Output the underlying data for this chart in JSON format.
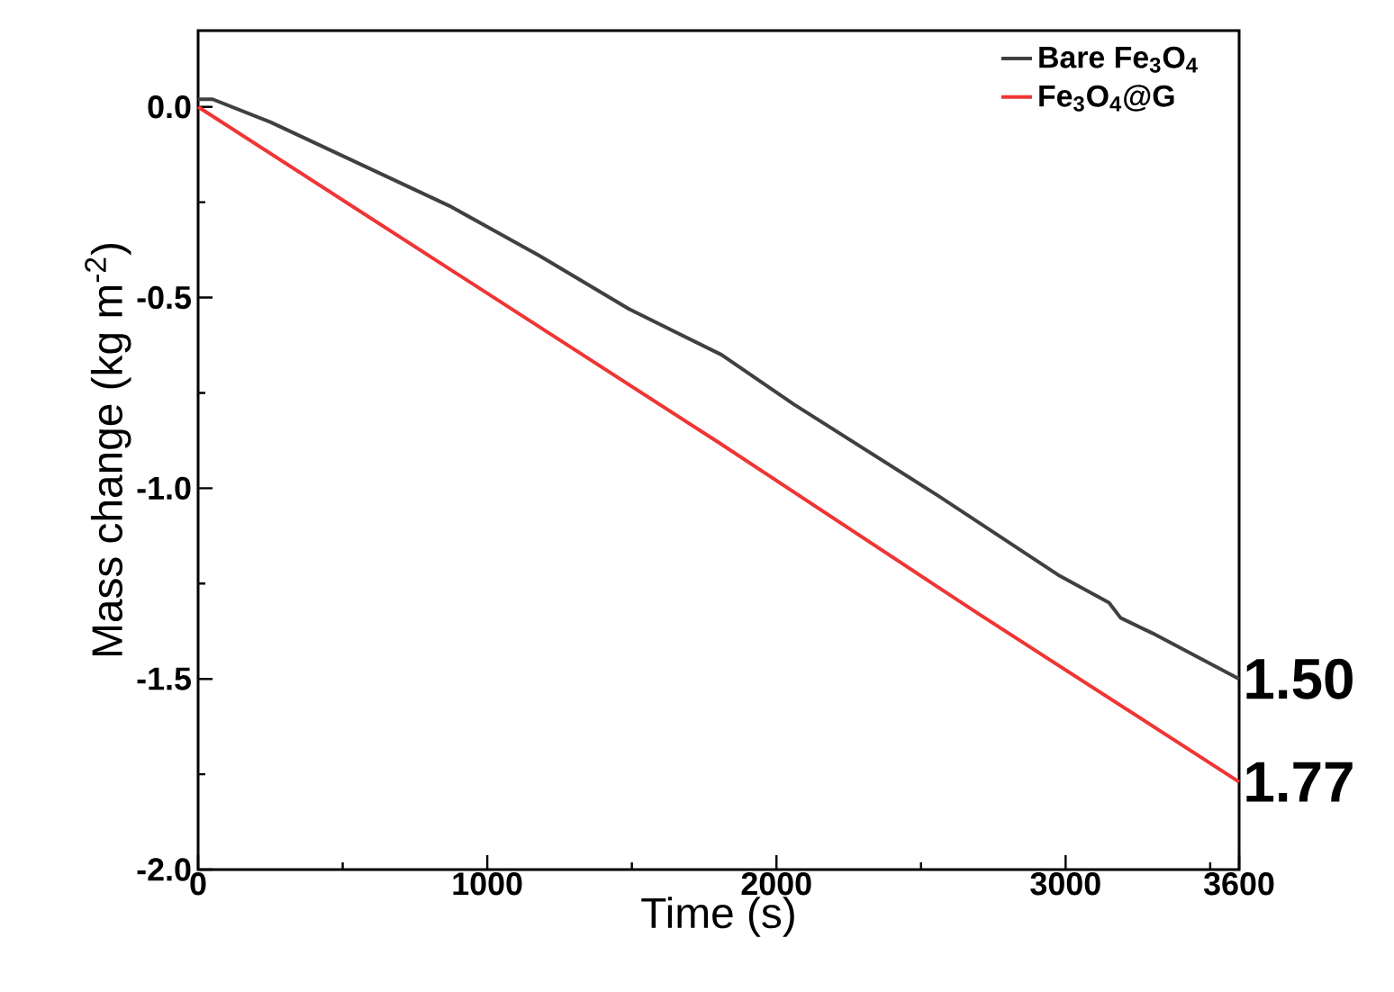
{
  "chart_data": {
    "type": "line",
    "xlabel": "Time (s)",
    "ylabel": "Mass change (kg m$^{-2}$)",
    "xlim": [
      0,
      3600
    ],
    "ylim": [
      -2.0,
      0.2
    ],
    "xticks": [
      0,
      {
        "value": 500,
        "label": null
      },
      1000,
      {
        "value": 1500,
        "label": null
      },
      2000,
      {
        "value": 2500,
        "label": null
      },
      3000,
      {
        "value": 3500,
        "label": null
      },
      3600
    ],
    "yticks": [
      {
        "value": -2.0,
        "label": "-2.0"
      },
      {
        "value": -1.75,
        "label": null
      },
      {
        "value": -1.5,
        "label": "-1.5"
      },
      {
        "value": -1.25,
        "label": null
      },
      {
        "value": -1.0,
        "label": "-1.0"
      },
      {
        "value": -0.75,
        "label": null
      },
      {
        "value": -0.5,
        "label": "-0.5"
      },
      {
        "value": -0.25,
        "label": null
      },
      {
        "value": 0.0,
        "label": "0.0"
      }
    ],
    "legend": "top right",
    "grid": false,
    "series": [
      {
        "name": "Bare Fe$_{3}$O$_{4}$",
        "color": "#404040",
        "x": [
          0,
          50,
          250,
          560,
          870,
          1180,
          1490,
          1810,
          2060,
          2560,
          2980,
          3150,
          3190,
          3300,
          3600
        ],
        "values": [
          0.02,
          0.02,
          -0.04,
          -0.15,
          -0.26,
          -0.39,
          -0.53,
          -0.65,
          -0.78,
          -1.02,
          -1.23,
          -1.3,
          -1.34,
          -1.38,
          -1.5
        ]
      },
      {
        "name": "Fe$_{3}$O$_{4}$@G",
        "color": "#f03535",
        "x": [
          0,
          900,
          1800,
          2700,
          3600
        ],
        "values": [
          0.0,
          -0.44,
          -0.88,
          -1.33,
          -1.77
        ]
      }
    ],
    "annotations": [
      {
        "text": "1.50",
        "x": 3600,
        "y": -1.5
      },
      {
        "text": "1.77",
        "x": 3600,
        "y": -1.77
      }
    ]
  }
}
